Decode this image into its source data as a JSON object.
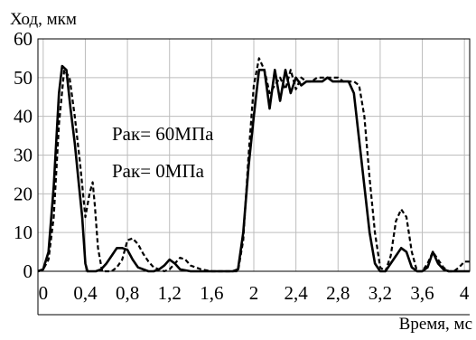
{
  "chart_data": {
    "type": "line",
    "ylabel": "Ход, мкм",
    "xlabel": "Время, мс",
    "xlim": [
      -0.05,
      4.05
    ],
    "ylim": [
      0,
      60
    ],
    "grid": true,
    "x_ticks": [
      0,
      0.4,
      0.8,
      1.2,
      1.6,
      2,
      2.4,
      2.8,
      3.2,
      3.6,
      4
    ],
    "x_tick_labels": [
      "0",
      "0,4",
      "0,8",
      "1,2",
      "1,6",
      "2",
      "2,4",
      "2,8",
      "3,2",
      "3,6",
      "4"
    ],
    "y_ticks": [
      0,
      10,
      20,
      30,
      40,
      50,
      60
    ],
    "y_tick_labels": [
      "0",
      "10",
      "20",
      "30",
      "40",
      "50",
      "60"
    ],
    "annotations": [
      "Рак= 60МПа",
      "Рак= 0МПа"
    ],
    "series": [
      {
        "name": "Рак= 60МПа",
        "style": "solid",
        "color": "#000000",
        "x": [
          -0.05,
          0,
          0.05,
          0.1,
          0.15,
          0.18,
          0.22,
          0.26,
          0.3,
          0.34,
          0.37,
          0.4,
          0.42,
          0.45,
          0.5,
          0.55,
          0.6,
          0.65,
          0.7,
          0.75,
          0.8,
          0.85,
          0.9,
          0.95,
          1.0,
          1.05,
          1.1,
          1.15,
          1.2,
          1.25,
          1.3,
          1.4,
          1.5,
          1.6,
          1.7,
          1.8,
          1.85,
          1.9,
          1.95,
          2.0,
          2.05,
          2.1,
          2.15,
          2.2,
          2.25,
          2.3,
          2.35,
          2.4,
          2.45,
          2.5,
          2.55,
          2.6,
          2.65,
          2.7,
          2.75,
          2.8,
          2.85,
          2.9,
          2.95,
          3.0,
          3.05,
          3.1,
          3.15,
          3.2,
          3.25,
          3.3,
          3.35,
          3.4,
          3.45,
          3.5,
          3.55,
          3.6,
          3.65,
          3.7,
          3.75,
          3.8,
          3.85,
          3.9,
          3.95,
          4.0,
          4.05
        ],
        "y": [
          0,
          0.5,
          5,
          22,
          46,
          53,
          52,
          42,
          33,
          22,
          14,
          2,
          0,
          0,
          0,
          0.5,
          2,
          4,
          6,
          6,
          5.5,
          3,
          1,
          0.5,
          0,
          0,
          0.5,
          1.5,
          3,
          2,
          0.5,
          0,
          0,
          0,
          0,
          0,
          0.5,
          10,
          27,
          40,
          52,
          52,
          42,
          52,
          44,
          52,
          46,
          50,
          48,
          49,
          49,
          49,
          49,
          50,
          49,
          49,
          49,
          49,
          46,
          34,
          22,
          10,
          2,
          0,
          0,
          2,
          4,
          6,
          5,
          1,
          0,
          0,
          1,
          5,
          2,
          0.5,
          0,
          0,
          0,
          0,
          0
        ]
      },
      {
        "name": "Рак= 0МПа",
        "style": "dashed",
        "color": "#000000",
        "x": [
          -0.05,
          0,
          0.05,
          0.1,
          0.15,
          0.2,
          0.25,
          0.3,
          0.35,
          0.4,
          0.44,
          0.47,
          0.49,
          0.52,
          0.56,
          0.6,
          0.65,
          0.7,
          0.75,
          0.8,
          0.85,
          0.9,
          0.95,
          1.0,
          1.05,
          1.1,
          1.15,
          1.2,
          1.25,
          1.3,
          1.35,
          1.4,
          1.5,
          1.6,
          1.7,
          1.8,
          1.85,
          1.9,
          1.95,
          2.0,
          2.05,
          2.1,
          2.15,
          2.2,
          2.25,
          2.3,
          2.35,
          2.4,
          2.45,
          2.5,
          2.55,
          2.6,
          2.65,
          2.7,
          2.75,
          2.8,
          2.85,
          2.9,
          2.95,
          3.0,
          3.05,
          3.1,
          3.15,
          3.2,
          3.25,
          3.3,
          3.35,
          3.4,
          3.45,
          3.5,
          3.55,
          3.6,
          3.65,
          3.7,
          3.75,
          3.8,
          3.85,
          3.9,
          3.95,
          4.0,
          4.05
        ],
        "y": [
          0,
          0.5,
          3,
          14,
          38,
          52,
          50,
          40,
          28,
          14,
          20,
          23,
          17,
          6,
          0,
          0,
          0,
          1,
          3,
          8,
          8.5,
          7,
          4.5,
          2.5,
          1,
          0.5,
          0,
          0.5,
          2,
          3.5,
          3,
          1.5,
          0.5,
          0,
          0,
          0,
          0,
          8,
          30,
          48,
          55,
          52,
          46,
          48,
          50,
          47,
          52,
          47,
          50,
          49,
          49,
          50,
          50,
          50,
          50,
          50,
          49,
          49,
          49,
          48,
          40,
          24,
          10,
          1,
          0,
          4,
          13,
          16,
          14,
          5,
          0,
          0,
          2,
          5,
          3,
          1,
          0,
          0,
          1,
          2.5,
          2.5
        ]
      }
    ]
  }
}
